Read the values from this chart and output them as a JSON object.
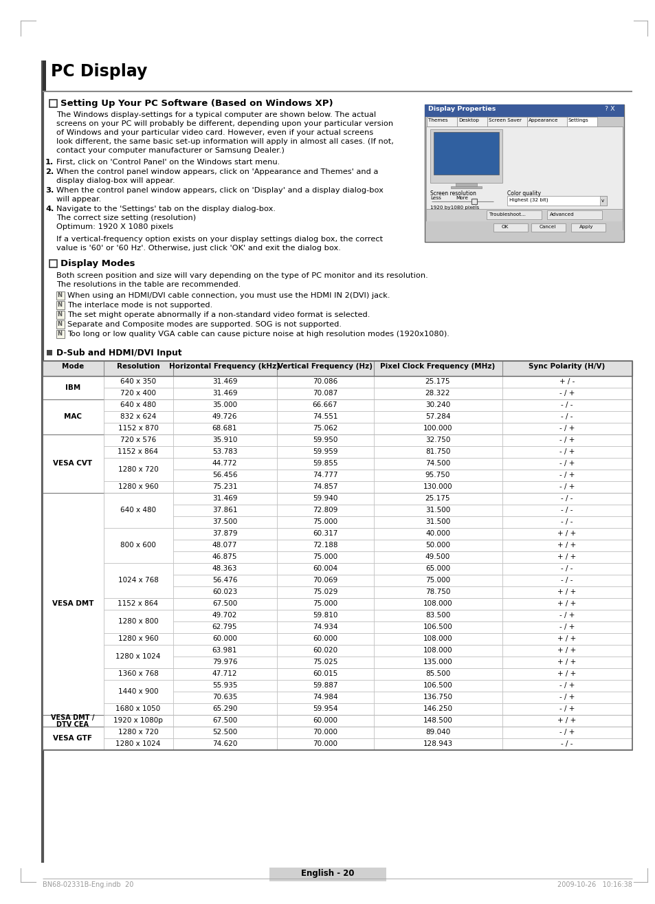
{
  "title": "PC Display",
  "section1_title": "Setting Up Your PC Software (Based on Windows XP)",
  "section1_body": [
    "The Windows display-settings for a typical computer are shown below. The actual",
    "screens on your PC will probably be different, depending upon your particular version",
    "of Windows and your particular video card. However, even if your actual screens",
    "look different, the same basic set-up information will apply in almost all cases. (If not,",
    "contact your computer manufacturer or Samsung Dealer.)"
  ],
  "section2_title": "Display Modes",
  "section2_body1": "Both screen position and size will vary depending on the type of PC monitor and its resolution.",
  "section2_body2": "The resolutions in the table are recommended.",
  "notes": [
    "When using an HDMI/DVI cable connection, you must use the HDMI IN 2(DVI) jack.",
    "The interlace mode is not supported.",
    "The set might operate abnormally if a non-standard video format is selected.",
    "Separate and Composite modes are supported. SOG is not supported.",
    "Too long or low quality VGA cable can cause picture noise at high resolution modes (1920x1080)."
  ],
  "subsection_title": "D-Sub and HDMI/DVI Input",
  "table_headers": [
    "Mode",
    "Resolution",
    "Horizontal Frequency (kHz)",
    "Vertical Frequency (Hz)",
    "Pixel Clock Frequency (MHz)",
    "Sync Polarity (H/V)"
  ],
  "table_data": [
    [
      "IBM",
      "640 x 350",
      "31.469",
      "70.086",
      "25.175",
      "+ / -"
    ],
    [
      "IBM",
      "720 x 400",
      "31.469",
      "70.087",
      "28.322",
      "- / +"
    ],
    [
      "MAC",
      "640 x 480",
      "35.000",
      "66.667",
      "30.240",
      "- / -"
    ],
    [
      "MAC",
      "832 x 624",
      "49.726",
      "74.551",
      "57.284",
      "- / -"
    ],
    [
      "MAC",
      "1152 x 870",
      "68.681",
      "75.062",
      "100.000",
      "- / +"
    ],
    [
      "VESA CVT",
      "720 x 576",
      "35.910",
      "59.950",
      "32.750",
      "- / +"
    ],
    [
      "VESA CVT",
      "1152 x 864",
      "53.783",
      "59.959",
      "81.750",
      "- / +"
    ],
    [
      "VESA CVT",
      "1280 x 720",
      "44.772",
      "59.855",
      "74.500",
      "- / +"
    ],
    [
      "VESA CVT",
      "1280 x 720",
      "56.456",
      "74.777",
      "95.750",
      "- / +"
    ],
    [
      "VESA CVT",
      "1280 x 960",
      "75.231",
      "74.857",
      "130.000",
      "- / +"
    ],
    [
      "VESA DMT",
      "640 x 480",
      "31.469",
      "59.940",
      "25.175",
      "- / -"
    ],
    [
      "VESA DMT",
      "640 x 480",
      "37.861",
      "72.809",
      "31.500",
      "- / -"
    ],
    [
      "VESA DMT",
      "640 x 480",
      "37.500",
      "75.000",
      "31.500",
      "- / -"
    ],
    [
      "VESA DMT",
      "800 x 600",
      "37.879",
      "60.317",
      "40.000",
      "+ / +"
    ],
    [
      "VESA DMT",
      "800 x 600",
      "48.077",
      "72.188",
      "50.000",
      "+ / +"
    ],
    [
      "VESA DMT",
      "800 x 600",
      "46.875",
      "75.000",
      "49.500",
      "+ / +"
    ],
    [
      "VESA DMT",
      "1024 x 768",
      "48.363",
      "60.004",
      "65.000",
      "- / -"
    ],
    [
      "VESA DMT",
      "1024 x 768",
      "56.476",
      "70.069",
      "75.000",
      "- / -"
    ],
    [
      "VESA DMT",
      "1024 x 768",
      "60.023",
      "75.029",
      "78.750",
      "+ / +"
    ],
    [
      "VESA DMT",
      "1152 x 864",
      "67.500",
      "75.000",
      "108.000",
      "+ / +"
    ],
    [
      "VESA DMT",
      "1280 x 800",
      "49.702",
      "59.810",
      "83.500",
      "- / +"
    ],
    [
      "VESA DMT",
      "1280 x 800",
      "62.795",
      "74.934",
      "106.500",
      "- / +"
    ],
    [
      "VESA DMT",
      "1280 x 960",
      "60.000",
      "60.000",
      "108.000",
      "+ / +"
    ],
    [
      "VESA DMT",
      "1280 x 1024",
      "63.981",
      "60.020",
      "108.000",
      "+ / +"
    ],
    [
      "VESA DMT",
      "1280 x 1024",
      "79.976",
      "75.025",
      "135.000",
      "+ / +"
    ],
    [
      "VESA DMT",
      "1360 x 768",
      "47.712",
      "60.015",
      "85.500",
      "+ / +"
    ],
    [
      "VESA DMT",
      "1440 x 900",
      "55.935",
      "59.887",
      "106.500",
      "- / +"
    ],
    [
      "VESA DMT",
      "1440 x 900",
      "70.635",
      "74.984",
      "136.750",
      "- / +"
    ],
    [
      "VESA DMT",
      "1680 x 1050",
      "65.290",
      "59.954",
      "146.250",
      "- / +"
    ],
    [
      "VESA DMT / DTV CEA",
      "1920 x 1080p",
      "67.500",
      "60.000",
      "148.500",
      "+ / +"
    ],
    [
      "VESA GTF",
      "1280 x 720",
      "52.500",
      "70.000",
      "89.040",
      "- / +"
    ],
    [
      "VESA GTF",
      "1280 x 1024",
      "74.620",
      "70.000",
      "128.943",
      "- / -"
    ]
  ],
  "footer_text": "English - 20",
  "footnote_left": "BN68-02331B-Eng.indb  20",
  "footnote_right": "2009-10-26   10:16:38",
  "bg_color": "#ffffff",
  "text_color": "#000000",
  "header_bg": "#e8e8e8",
  "border_color": "#999999",
  "title_bar_color": "#555555",
  "step1": "First, click on 'Control Panel' on the Windows start menu.",
  "step2a": "When the control panel window appears, click on 'Appearance and Themes' and a",
  "step2b": "display dialog-box will appear.",
  "step3a": "When the control panel window appears, click on 'Display' and a display dialog-box",
  "step3b": "will appear.",
  "step4a": "Navigate to the 'Settings' tab on the display dialog-box.",
  "step4b": "The correct size setting (resolution)",
  "step4c": "Optimum: 1920 X 1080 pixels",
  "step4d": "If a vertical-frequency option exists on your display settings dialog box, the correct",
  "step4e": "value is '60' or '60 Hz'. Otherwise, just click 'OK' and exit the dialog box."
}
